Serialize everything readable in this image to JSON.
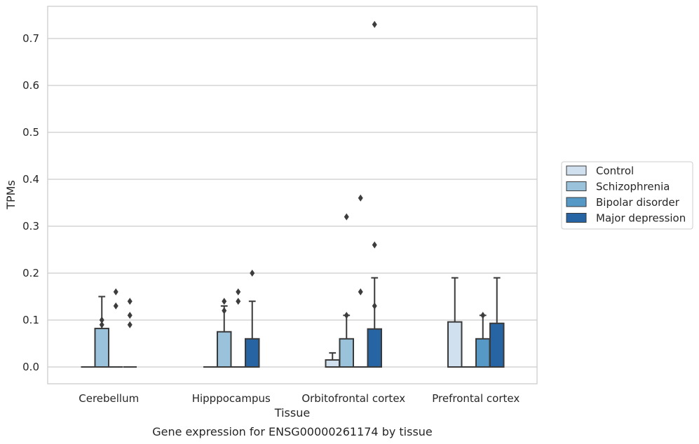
{
  "chart_data": {
    "type": "box",
    "title": "",
    "caption": "Gene expression for ENSG00000261174 by tissue",
    "xlabel": "Tissue",
    "ylabel": "TPMs",
    "ylim": [
      -0.035,
      0.77
    ],
    "yticks": [
      0.0,
      0.1,
      0.2,
      0.3,
      0.4,
      0.5,
      0.6,
      0.7
    ],
    "ytick_labels": [
      "0.0",
      "0.1",
      "0.2",
      "0.3",
      "0.4",
      "0.5",
      "0.6",
      "0.7"
    ],
    "grid": true,
    "legend_position": "right",
    "categories": [
      "Cerebellum",
      "Hipppocampus",
      "Orbitofrontal cortex",
      "Prefrontal cortex"
    ],
    "series": [
      {
        "name": "Control",
        "color": "#d1e0ef",
        "boxes": [
          {
            "min": 0,
            "q1": 0,
            "median": 0,
            "q3": 0,
            "max": 0,
            "outliers": []
          },
          {
            "min": 0,
            "q1": 0,
            "median": 0,
            "q3": 0,
            "max": 0,
            "outliers": []
          },
          {
            "min": 0,
            "q1": 0,
            "median": 0,
            "q3": 0.015,
            "max": 0.03,
            "outliers": []
          },
          {
            "min": 0,
            "q1": 0,
            "median": 0,
            "q3": 0.096,
            "max": 0.19,
            "outliers": []
          }
        ]
      },
      {
        "name": "Schizophrenia",
        "color": "#9ac2db",
        "boxes": [
          {
            "min": 0,
            "q1": 0,
            "median": 0,
            "q3": 0.082,
            "max": 0.15,
            "outliers": [
              0.09,
              0.1
            ]
          },
          {
            "min": 0,
            "q1": 0,
            "median": 0,
            "q3": 0.075,
            "max": 0.13,
            "outliers": [
              0.12,
              0.14
            ]
          },
          {
            "min": 0,
            "q1": 0,
            "median": 0,
            "q3": 0.06,
            "max": 0.11,
            "outliers": [
              0.11,
              0.32
            ]
          },
          {
            "min": 0,
            "q1": 0,
            "median": 0,
            "q3": 0,
            "max": 0,
            "outliers": []
          }
        ]
      },
      {
        "name": "Bipolar disorder",
        "color": "#5698c6",
        "boxes": [
          {
            "min": 0,
            "q1": 0,
            "median": 0,
            "q3": 0,
            "max": 0,
            "outliers": [
              0.13,
              0.16
            ]
          },
          {
            "min": 0,
            "q1": 0,
            "median": 0,
            "q3": 0,
            "max": 0,
            "outliers": [
              0.14,
              0.16
            ]
          },
          {
            "min": 0,
            "q1": 0,
            "median": 0,
            "q3": 0,
            "max": 0,
            "outliers": [
              0.16,
              0.36
            ]
          },
          {
            "min": 0,
            "q1": 0,
            "median": 0,
            "q3": 0.06,
            "max": 0.11,
            "outliers": [
              0.11
            ]
          }
        ]
      },
      {
        "name": "Major depression",
        "color": "#2764a3",
        "boxes": [
          {
            "min": 0,
            "q1": 0,
            "median": 0,
            "q3": 0,
            "max": 0,
            "outliers": [
              0.09,
              0.11,
              0.14
            ]
          },
          {
            "min": 0,
            "q1": 0,
            "median": 0,
            "q3": 0.06,
            "max": 0.14,
            "outliers": [
              0.2
            ]
          },
          {
            "min": 0,
            "q1": 0,
            "median": 0,
            "q3": 0.081,
            "max": 0.19,
            "outliers": [
              0.13,
              0.26,
              0.73
            ]
          },
          {
            "min": 0,
            "q1": 0,
            "median": 0,
            "q3": 0.093,
            "max": 0.19,
            "outliers": []
          }
        ]
      }
    ]
  }
}
